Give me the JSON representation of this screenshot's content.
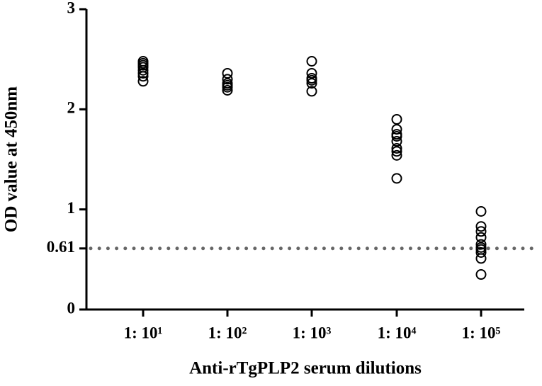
{
  "chart_data": {
    "type": "strip",
    "x_label": "Anti-rTgPLP2 serum dilutions",
    "y_label": "OD value at 450nm",
    "categories": [
      "1: 10¹",
      "1: 10²",
      "1: 10³",
      "1: 10⁴",
      "1: 10⁵"
    ],
    "values": [
      [
        2.48,
        2.46,
        2.44,
        2.42,
        2.39,
        2.36,
        2.33,
        2.28
      ],
      [
        2.36,
        2.3,
        2.26,
        2.24,
        2.22,
        2.19
      ],
      [
        2.48,
        2.36,
        2.31,
        2.29,
        2.26,
        2.18
      ],
      [
        1.9,
        1.8,
        1.75,
        1.73,
        1.68,
        1.61,
        1.58,
        1.54,
        1.31
      ],
      [
        0.98,
        0.83,
        0.78,
        0.72,
        0.65,
        0.62,
        0.6,
        0.57,
        0.51,
        0.35
      ]
    ],
    "color": "#000000",
    "threshold": 0.61,
    "threshold_color": "#666666",
    "ylim": [
      0,
      3
    ],
    "yticks": [
      0,
      0.61,
      1,
      2,
      3
    ]
  }
}
